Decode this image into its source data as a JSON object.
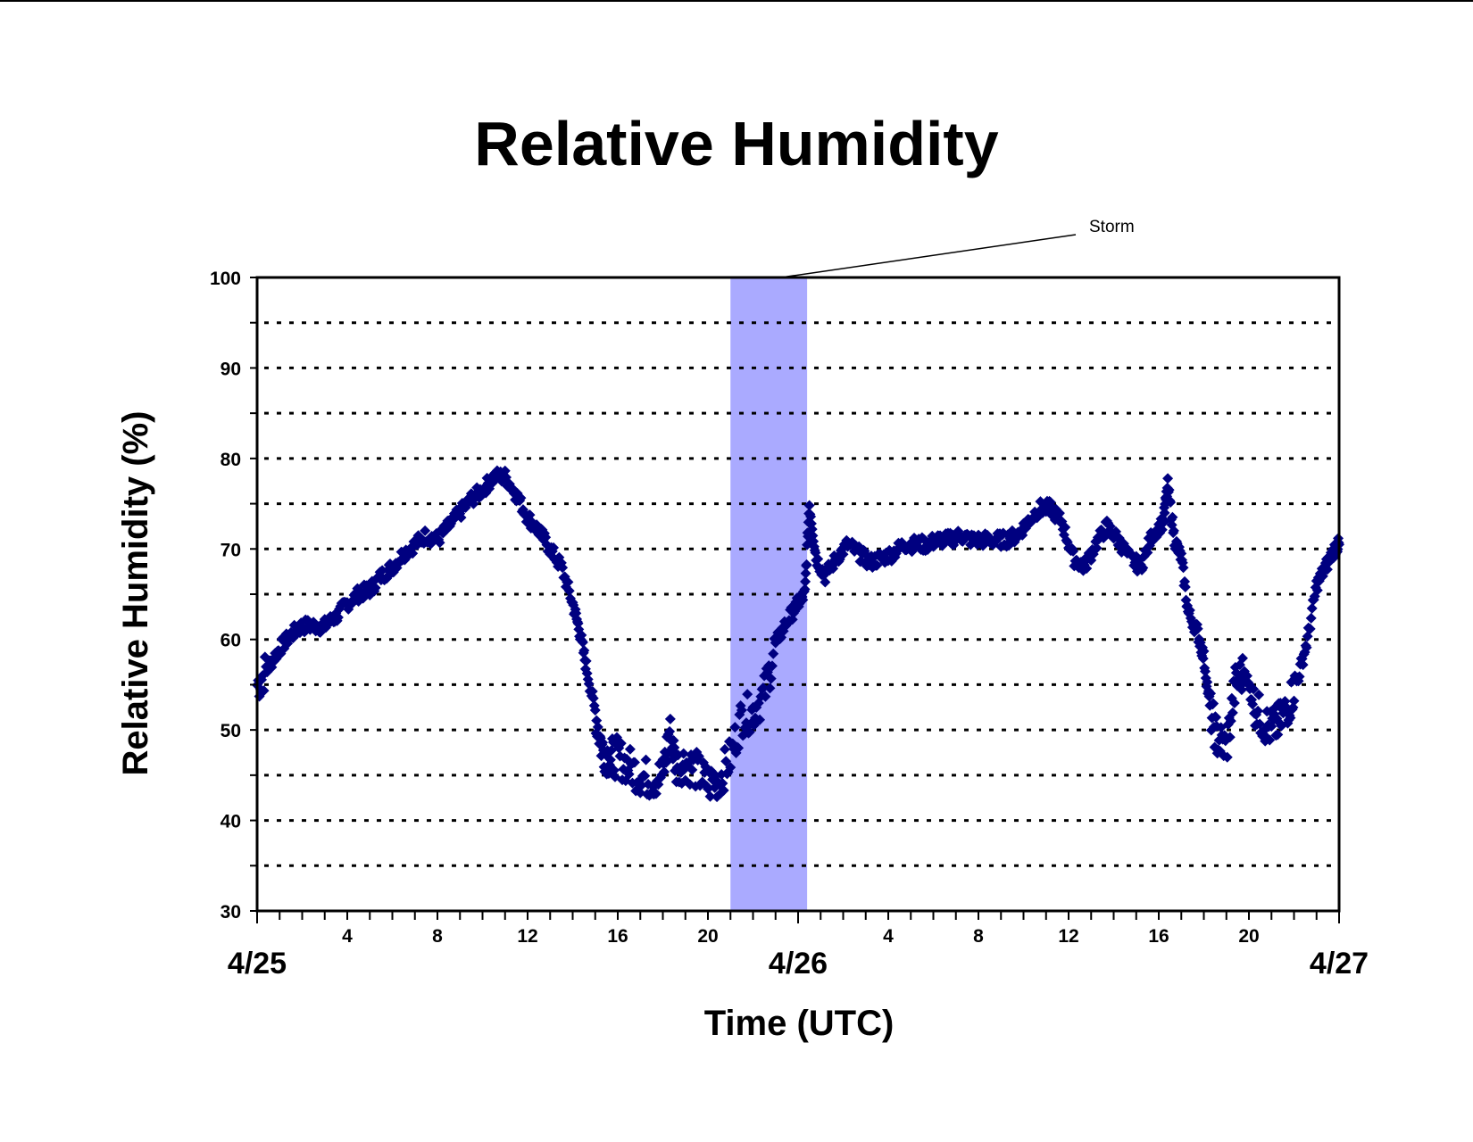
{
  "chart_data": {
    "type": "scatter",
    "title": "Relative Humidity",
    "xlabel": "Time (UTC)",
    "ylabel": "Relative Humidity (%)",
    "x_unit": "hours after 4/25 00 UTC",
    "xlim": [
      0,
      48
    ],
    "ylim": [
      30,
      100
    ],
    "y_ticks": [
      30,
      40,
      50,
      60,
      70,
      80,
      90,
      100
    ],
    "y_gridlines": [
      35,
      40,
      45,
      50,
      55,
      60,
      65,
      70,
      75,
      80,
      85,
      90,
      95
    ],
    "grid_style": "dotted",
    "x_hour_ticks": [
      {
        "x": 4,
        "label": "4"
      },
      {
        "x": 8,
        "label": "8"
      },
      {
        "x": 12,
        "label": "12"
      },
      {
        "x": 16,
        "label": "16"
      },
      {
        "x": 20,
        "label": "20"
      },
      {
        "x": 28,
        "label": "4"
      },
      {
        "x": 32,
        "label": "8"
      },
      {
        "x": 36,
        "label": "12"
      },
      {
        "x": 40,
        "label": "16"
      },
      {
        "x": 44,
        "label": "20"
      }
    ],
    "x_date_labels": [
      {
        "x": 0,
        "label": "4/25"
      },
      {
        "x": 24,
        "label": "4/26"
      },
      {
        "x": 48,
        "label": "4/27"
      }
    ],
    "shaded_region": {
      "x_start": 21,
      "x_end": 24.4,
      "label": "Storm",
      "color": "#aaaaff"
    },
    "marker": {
      "shape": "diamond",
      "color": "#000080"
    },
    "series": [
      {
        "name": "",
        "points": [
          [
            0.0,
            55
          ],
          [
            0.5,
            57
          ],
          [
            1.0,
            59
          ],
          [
            1.5,
            60.5
          ],
          [
            2.0,
            61.5
          ],
          [
            2.5,
            61.5
          ],
          [
            3.0,
            61.5
          ],
          [
            3.5,
            62.5
          ],
          [
            4.0,
            64
          ],
          [
            4.5,
            65
          ],
          [
            5.0,
            65.5
          ],
          [
            5.5,
            67
          ],
          [
            6.0,
            68
          ],
          [
            6.5,
            69.5
          ],
          [
            7.0,
            70.5
          ],
          [
            7.5,
            71.5
          ],
          [
            8.0,
            71
          ],
          [
            8.5,
            72.5
          ],
          [
            9.0,
            74
          ],
          [
            9.5,
            75.5
          ],
          [
            10.0,
            76.5
          ],
          [
            10.5,
            78
          ],
          [
            11.0,
            78
          ],
          [
            11.5,
            76
          ],
          [
            12.0,
            73.5
          ],
          [
            12.5,
            72
          ],
          [
            13.0,
            70
          ],
          [
            13.5,
            68
          ],
          [
            14.0,
            64
          ],
          [
            14.3,
            61
          ],
          [
            14.6,
            57
          ],
          [
            15.0,
            52
          ],
          [
            15.3,
            48
          ],
          [
            15.6,
            47
          ],
          [
            16.0,
            47
          ],
          [
            16.5,
            46
          ],
          [
            17.0,
            45
          ],
          [
            17.5,
            44.5
          ],
          [
            18.0,
            45
          ],
          [
            18.3,
            50
          ],
          [
            18.6,
            46
          ],
          [
            19.0,
            46.5
          ],
          [
            19.5,
            45.5
          ],
          [
            20.0,
            44
          ],
          [
            20.5,
            44.5
          ],
          [
            21.0,
            47
          ],
          [
            21.5,
            51.5
          ],
          [
            22.0,
            52
          ],
          [
            22.5,
            54
          ],
          [
            23.0,
            59.5
          ],
          [
            23.5,
            62
          ],
          [
            24.0,
            64
          ],
          [
            24.3,
            65
          ],
          [
            24.5,
            75
          ],
          [
            24.8,
            69
          ],
          [
            25.2,
            67
          ],
          [
            25.7,
            69
          ],
          [
            26.2,
            70.5
          ],
          [
            26.7,
            69.5
          ],
          [
            27.2,
            68.5
          ],
          [
            27.7,
            69
          ],
          [
            28.2,
            69.5
          ],
          [
            28.7,
            70.5
          ],
          [
            29.2,
            70.5
          ],
          [
            29.7,
            70.5
          ],
          [
            30.2,
            71
          ],
          [
            30.7,
            71
          ],
          [
            31.2,
            71.5
          ],
          [
            31.7,
            71
          ],
          [
            32.2,
            71
          ],
          [
            32.7,
            71
          ],
          [
            33.2,
            71
          ],
          [
            33.7,
            71.5
          ],
          [
            34.2,
            73
          ],
          [
            34.7,
            74.5
          ],
          [
            35.2,
            74.5
          ],
          [
            35.7,
            73
          ],
          [
            36.2,
            69
          ],
          [
            36.7,
            68
          ],
          [
            37.2,
            70.5
          ],
          [
            37.7,
            72.5
          ],
          [
            38.2,
            71
          ],
          [
            38.7,
            69
          ],
          [
            39.2,
            68
          ],
          [
            39.7,
            71.5
          ],
          [
            40.2,
            73
          ],
          [
            40.4,
            77
          ],
          [
            40.7,
            71
          ],
          [
            41.0,
            69
          ],
          [
            41.3,
            63
          ],
          [
            41.7,
            61
          ],
          [
            42.0,
            58
          ],
          [
            42.3,
            52
          ],
          [
            42.6,
            49
          ],
          [
            43.0,
            48
          ],
          [
            43.4,
            55
          ],
          [
            43.8,
            56.5
          ],
          [
            44.2,
            53
          ],
          [
            44.6,
            51
          ],
          [
            45.0,
            50
          ],
          [
            45.4,
            51
          ],
          [
            45.8,
            53
          ],
          [
            46.2,
            56
          ],
          [
            46.6,
            60
          ],
          [
            47.0,
            66
          ],
          [
            47.4,
            68
          ],
          [
            47.8,
            70
          ],
          [
            48.0,
            70.5
          ]
        ]
      }
    ]
  }
}
